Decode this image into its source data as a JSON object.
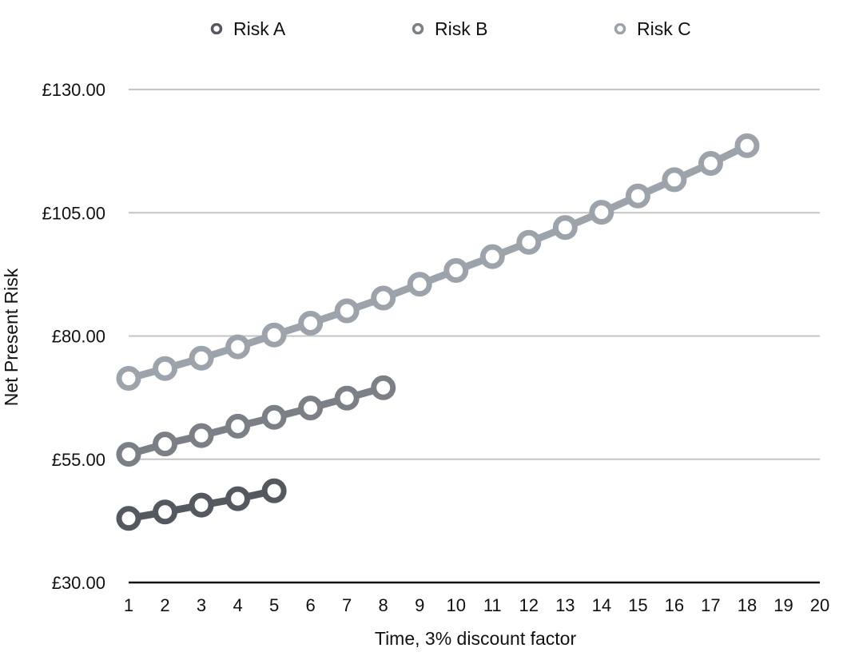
{
  "chart_data": {
    "type": "line",
    "xlabel": "Time, 3% discount factor",
    "ylabel": "Net Present Risk",
    "x_ticks": [
      "1",
      "2",
      "3",
      "4",
      "5",
      "6",
      "7",
      "8",
      "9",
      "10",
      "11",
      "12",
      "13",
      "14",
      "15",
      "16",
      "17",
      "18",
      "19",
      "20"
    ],
    "xlim": [
      1,
      20
    ],
    "ylim": [
      30,
      130
    ],
    "y_ticks": [
      30,
      55,
      80,
      105,
      130
    ],
    "y_tick_labels": [
      "£30.00",
      "£55.00",
      "£80.00",
      "£105.00",
      "£130.00"
    ],
    "grid": true,
    "legend_position": "top",
    "series": [
      {
        "name": "Risk A",
        "color": "#54595f",
        "x": [
          1,
          2,
          3,
          4,
          5
        ],
        "values": [
          43.0,
          44.3,
          45.7,
          47.0,
          48.6
        ]
      },
      {
        "name": "Risk B",
        "color": "#7b7f86",
        "x": [
          1,
          2,
          3,
          4,
          5,
          6,
          7,
          8
        ],
        "values": [
          56.0,
          58.1,
          59.8,
          61.7,
          63.5,
          65.4,
          67.4,
          69.5
        ]
      },
      {
        "name": "Risk C",
        "color": "#9ca3ab",
        "x": [
          1,
          2,
          3,
          4,
          5,
          6,
          7,
          8,
          9,
          10,
          11,
          12,
          13,
          14,
          15,
          16,
          17,
          18
        ],
        "values": [
          71.4,
          73.4,
          75.5,
          77.8,
          80.2,
          82.6,
          85.1,
          87.7,
          90.5,
          93.3,
          96.1,
          99.0,
          102.0,
          105.1,
          108.4,
          111.7,
          115.0,
          118.6
        ]
      }
    ]
  }
}
